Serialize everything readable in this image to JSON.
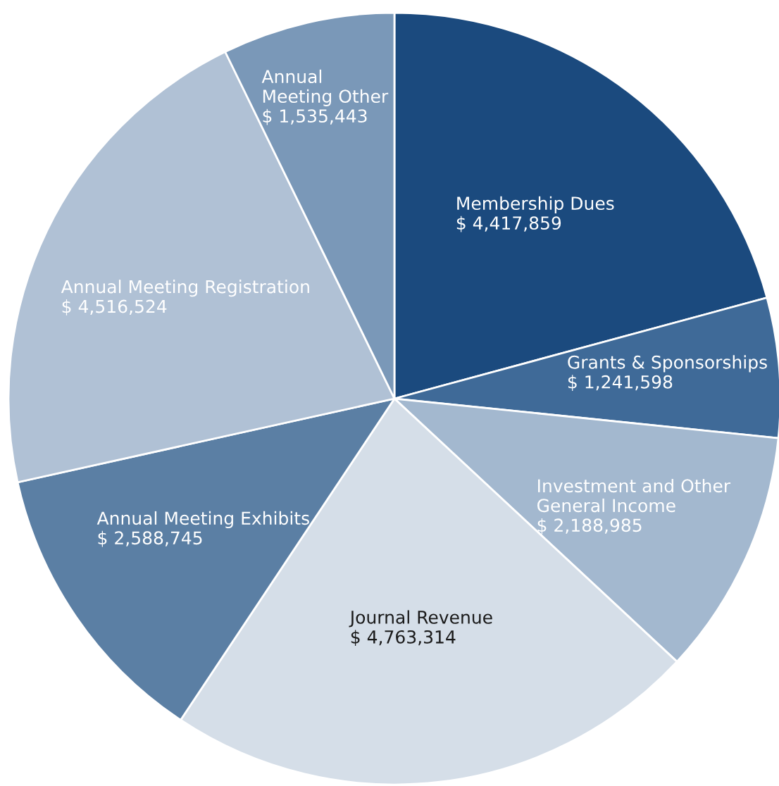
{
  "chart_data": {
    "type": "pie",
    "categories": [
      "Membership Dues",
      "Grants & Sponsorships",
      "Investment and Other\nGeneral Income",
      "Journal Revenue",
      "Annual Meeting Exhibits",
      "Annual Meeting Registration",
      "Annual\nMeeting Other"
    ],
    "values": [
      4417859,
      1241598,
      2188985,
      4763314,
      2588745,
      4516524,
      1535443
    ],
    "value_labels": [
      "$ 4,417,859",
      "$ 1,241,598",
      "$ 2,188,985",
      "$ 4,763,314",
      "$ 2,588,745",
      "$ 4,516,524",
      "$ 1,535,443"
    ],
    "colors": [
      "#1b4a7e",
      "#3f6a98",
      "#a3b8cf",
      "#d5dee8",
      "#5b7fa4",
      "#b0c1d5",
      "#7a98b8"
    ],
    "legend": false
  }
}
